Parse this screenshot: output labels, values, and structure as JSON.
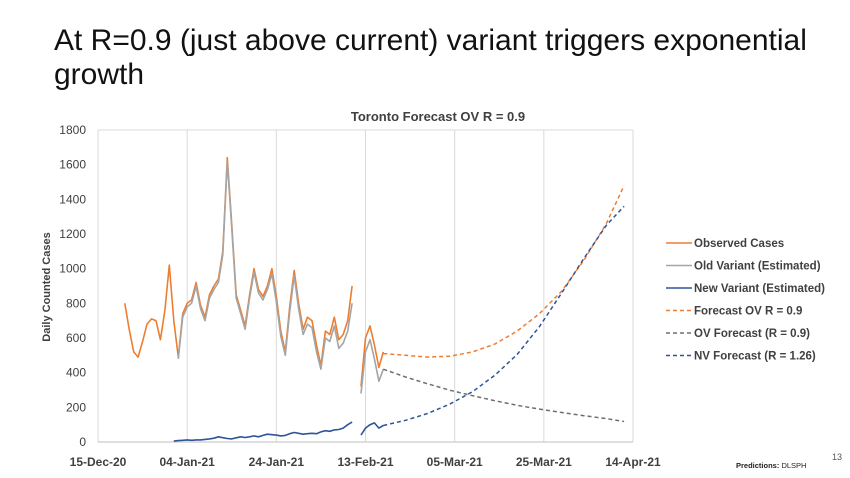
{
  "slide": {
    "title": "At R=0.9 (just above current) variant triggers exponential growth",
    "slide_number": "13",
    "credit_label": "Predictions:",
    "credit_value": "DLSPH"
  },
  "colors": {
    "orange": "#ED7D31",
    "gray": "#A5A5A5",
    "blue": "#2F5597",
    "dark_gray": "#6E6E6E",
    "grid": "#D9D9D9"
  },
  "chart_data": {
    "type": "line",
    "title": "Toronto Forecast OV R = 0.9",
    "xlabel": "",
    "ylabel": "Daily Counted Cases",
    "ylim": [
      0,
      1800
    ],
    "yticks": [
      0,
      200,
      400,
      600,
      800,
      1000,
      1200,
      1400,
      1600,
      1800
    ],
    "xlim": [
      "2020-12-15",
      "2021-04-14"
    ],
    "xticks": [
      "15-Dec-20",
      "04-Jan-21",
      "24-Jan-21",
      "13-Feb-21",
      "05-Mar-21",
      "25-Mar-21",
      "14-Apr-21"
    ],
    "xtick_dates": [
      "2020-12-15",
      "2021-01-04",
      "2021-01-24",
      "2021-02-13",
      "2021-03-05",
      "2021-03-25",
      "2021-04-14"
    ],
    "grid": "vertical",
    "legend_position": "right",
    "series": [
      {
        "name": "Observed Cases",
        "color": "#ED7D31",
        "style": "solid",
        "points": [
          [
            "2020-12-21",
            800
          ],
          [
            "2020-12-22",
            650
          ],
          [
            "2020-12-23",
            520
          ],
          [
            "2020-12-24",
            490
          ],
          [
            "2020-12-25",
            580
          ],
          [
            "2020-12-26",
            680
          ],
          [
            "2020-12-27",
            710
          ],
          [
            "2020-12-28",
            700
          ],
          [
            "2020-12-29",
            590
          ],
          [
            "2020-12-30",
            760
          ],
          [
            "2020-12-31",
            1020
          ],
          [
            "2021-01-01",
            700
          ],
          [
            "2021-01-02",
            490
          ],
          [
            "2021-01-03",
            740
          ],
          [
            "2021-01-04",
            800
          ],
          [
            "2021-01-05",
            820
          ],
          [
            "2021-01-06",
            920
          ],
          [
            "2021-01-07",
            790
          ],
          [
            "2021-01-08",
            720
          ],
          [
            "2021-01-09",
            850
          ],
          [
            "2021-01-10",
            900
          ],
          [
            "2021-01-11",
            940
          ],
          [
            "2021-01-12",
            1100
          ],
          [
            "2021-01-13",
            1640
          ],
          [
            "2021-01-14",
            1250
          ],
          [
            "2021-01-15",
            850
          ],
          [
            "2021-01-16",
            760
          ],
          [
            "2021-01-17",
            670
          ],
          [
            "2021-01-18",
            850
          ],
          [
            "2021-01-19",
            1000
          ],
          [
            "2021-01-20",
            880
          ],
          [
            "2021-01-21",
            840
          ],
          [
            "2021-01-22",
            900
          ],
          [
            "2021-01-23",
            1000
          ],
          [
            "2021-01-24",
            840
          ],
          [
            "2021-01-25",
            640
          ],
          [
            "2021-01-26",
            520
          ],
          [
            "2021-01-27",
            780
          ],
          [
            "2021-01-28",
            990
          ],
          [
            "2021-01-29",
            800
          ],
          [
            "2021-01-30",
            650
          ],
          [
            "2021-01-31",
            720
          ],
          [
            "2021-02-01",
            700
          ],
          [
            "2021-02-02",
            560
          ],
          [
            "2021-02-03",
            440
          ],
          [
            "2021-02-04",
            640
          ],
          [
            "2021-02-05",
            620
          ],
          [
            "2021-02-06",
            720
          ],
          [
            "2021-02-07",
            590
          ],
          [
            "2021-02-08",
            620
          ],
          [
            "2021-02-09",
            700
          ],
          [
            "2021-02-10",
            900
          ],
          [
            null,
            null
          ],
          [
            "2021-02-12",
            320
          ],
          [
            "2021-02-13",
            600
          ],
          [
            "2021-02-14",
            670
          ],
          [
            "2021-02-15",
            560
          ],
          [
            "2021-02-16",
            430
          ],
          [
            "2021-02-17",
            520
          ]
        ]
      },
      {
        "name": "Old Variant (Estimated)",
        "color": "#A5A5A5",
        "style": "solid",
        "points": [
          [
            "2021-01-02",
            480
          ],
          [
            "2021-01-03",
            720
          ],
          [
            "2021-01-04",
            780
          ],
          [
            "2021-01-05",
            800
          ],
          [
            "2021-01-06",
            900
          ],
          [
            "2021-01-07",
            770
          ],
          [
            "2021-01-08",
            700
          ],
          [
            "2021-01-09",
            830
          ],
          [
            "2021-01-10",
            880
          ],
          [
            "2021-01-11",
            920
          ],
          [
            "2021-01-12",
            1080
          ],
          [
            "2021-01-13",
            1620
          ],
          [
            "2021-01-14",
            1230
          ],
          [
            "2021-01-15",
            830
          ],
          [
            "2021-01-16",
            740
          ],
          [
            "2021-01-17",
            650
          ],
          [
            "2021-01-18",
            830
          ],
          [
            "2021-01-19",
            980
          ],
          [
            "2021-01-20",
            860
          ],
          [
            "2021-01-21",
            820
          ],
          [
            "2021-01-22",
            880
          ],
          [
            "2021-01-23",
            970
          ],
          [
            "2021-01-24",
            810
          ],
          [
            "2021-01-25",
            610
          ],
          [
            "2021-01-26",
            500
          ],
          [
            "2021-01-27",
            750
          ],
          [
            "2021-01-28",
            960
          ],
          [
            "2021-01-29",
            770
          ],
          [
            "2021-01-30",
            620
          ],
          [
            "2021-01-31",
            680
          ],
          [
            "2021-02-01",
            660
          ],
          [
            "2021-02-02",
            520
          ],
          [
            "2021-02-03",
            420
          ],
          [
            "2021-02-04",
            600
          ],
          [
            "2021-02-05",
            580
          ],
          [
            "2021-02-06",
            670
          ],
          [
            "2021-02-07",
            540
          ],
          [
            "2021-02-08",
            570
          ],
          [
            "2021-02-09",
            640
          ],
          [
            "2021-02-10",
            800
          ],
          [
            null,
            null
          ],
          [
            "2021-02-12",
            280
          ],
          [
            "2021-02-13",
            520
          ],
          [
            "2021-02-14",
            590
          ],
          [
            "2021-02-15",
            480
          ],
          [
            "2021-02-16",
            350
          ],
          [
            "2021-02-17",
            420
          ]
        ]
      },
      {
        "name": "New Variant (Estimated)",
        "color": "#2F5597",
        "style": "solid",
        "points": [
          [
            "2021-01-01",
            5
          ],
          [
            "2021-01-02",
            8
          ],
          [
            "2021-01-03",
            10
          ],
          [
            "2021-01-04",
            12
          ],
          [
            "2021-01-05",
            10
          ],
          [
            "2021-01-06",
            12
          ],
          [
            "2021-01-07",
            12
          ],
          [
            "2021-01-08",
            15
          ],
          [
            "2021-01-09",
            18
          ],
          [
            "2021-01-10",
            22
          ],
          [
            "2021-01-11",
            30
          ],
          [
            "2021-01-12",
            25
          ],
          [
            "2021-01-13",
            20
          ],
          [
            "2021-01-14",
            18
          ],
          [
            "2021-01-15",
            24
          ],
          [
            "2021-01-16",
            30
          ],
          [
            "2021-01-17",
            26
          ],
          [
            "2021-01-18",
            30
          ],
          [
            "2021-01-19",
            35
          ],
          [
            "2021-01-20",
            30
          ],
          [
            "2021-01-21",
            38
          ],
          [
            "2021-01-22",
            45
          ],
          [
            "2021-01-23",
            42
          ],
          [
            "2021-01-24",
            40
          ],
          [
            "2021-01-25",
            35
          ],
          [
            "2021-01-26",
            38
          ],
          [
            "2021-01-27",
            48
          ],
          [
            "2021-01-28",
            55
          ],
          [
            "2021-01-29",
            50
          ],
          [
            "2021-01-30",
            45
          ],
          [
            "2021-01-31",
            48
          ],
          [
            "2021-02-01",
            50
          ],
          [
            "2021-02-02",
            48
          ],
          [
            "2021-02-03",
            58
          ],
          [
            "2021-02-04",
            65
          ],
          [
            "2021-02-05",
            62
          ],
          [
            "2021-02-06",
            70
          ],
          [
            "2021-02-07",
            72
          ],
          [
            "2021-02-08",
            80
          ],
          [
            "2021-02-09",
            100
          ],
          [
            "2021-02-10",
            115
          ],
          [
            null,
            null
          ],
          [
            "2021-02-12",
            40
          ],
          [
            "2021-02-13",
            80
          ],
          [
            "2021-02-14",
            100
          ],
          [
            "2021-02-15",
            110
          ],
          [
            "2021-02-16",
            80
          ],
          [
            "2021-02-17",
            95
          ]
        ]
      },
      {
        "name": "Forecast OV R = 0.9",
        "color": "#ED7D31",
        "style": "dashed",
        "points": [
          [
            "2021-02-17",
            510
          ],
          [
            "2021-02-22",
            500
          ],
          [
            "2021-02-27",
            490
          ],
          [
            "2021-03-04",
            495
          ],
          [
            "2021-03-09",
            520
          ],
          [
            "2021-03-14",
            565
          ],
          [
            "2021-03-19",
            640
          ],
          [
            "2021-03-24",
            740
          ],
          [
            "2021-03-29",
            870
          ],
          [
            "2021-04-03",
            1050
          ],
          [
            "2021-04-08",
            1260
          ],
          [
            "2021-04-12",
            1480
          ]
        ]
      },
      {
        "name": "OV Forecast (R = 0.9)",
        "color": "#6E6E6E",
        "style": "dashed",
        "points": [
          [
            "2021-02-17",
            420
          ],
          [
            "2021-02-22",
            375
          ],
          [
            "2021-02-27",
            335
          ],
          [
            "2021-03-04",
            298
          ],
          [
            "2021-03-09",
            267
          ],
          [
            "2021-03-14",
            238
          ],
          [
            "2021-03-19",
            212
          ],
          [
            "2021-03-24",
            190
          ],
          [
            "2021-03-29",
            170
          ],
          [
            "2021-04-03",
            152
          ],
          [
            "2021-04-08",
            135
          ],
          [
            "2021-04-12",
            118
          ]
        ]
      },
      {
        "name": "NV Forecast (R = 1.26)",
        "color": "#2F5597",
        "style": "dashed",
        "points": [
          [
            "2021-02-17",
            95
          ],
          [
            "2021-02-22",
            125
          ],
          [
            "2021-02-27",
            165
          ],
          [
            "2021-03-04",
            220
          ],
          [
            "2021-03-09",
            290
          ],
          [
            "2021-03-14",
            385
          ],
          [
            "2021-03-19",
            505
          ],
          [
            "2021-03-24",
            665
          ],
          [
            "2021-03-29",
            860
          ],
          [
            "2021-04-03",
            1060
          ],
          [
            "2021-04-08",
            1250
          ],
          [
            "2021-04-12",
            1360
          ]
        ]
      }
    ]
  }
}
